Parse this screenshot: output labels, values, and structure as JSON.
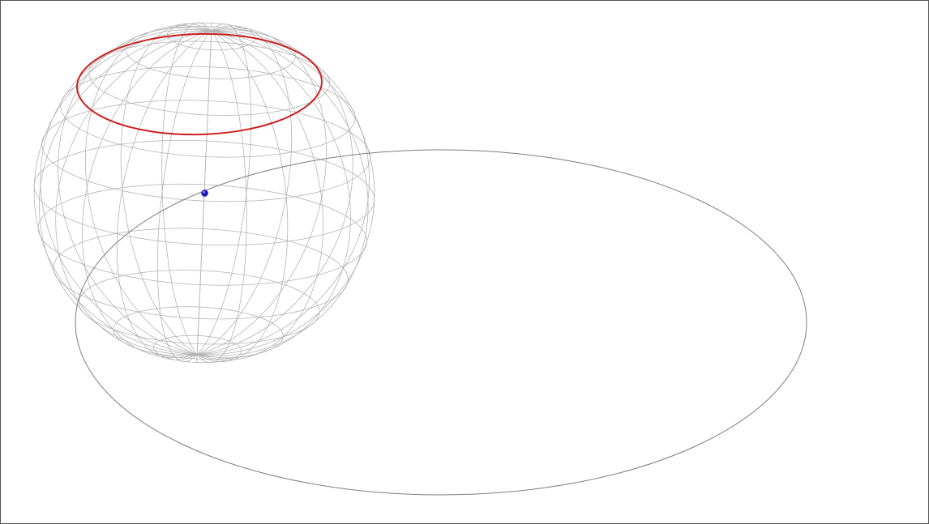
{
  "scene": {
    "sphere": {
      "wireframe_color": "#b4b4b4",
      "parallels_count": 11,
      "meridians_count": 24
    },
    "highlight_circle": {
      "color": "#cc1f1f"
    },
    "orbit": {
      "color": "#7d7d7d"
    },
    "point": {
      "color": "#1a1ab8"
    }
  }
}
